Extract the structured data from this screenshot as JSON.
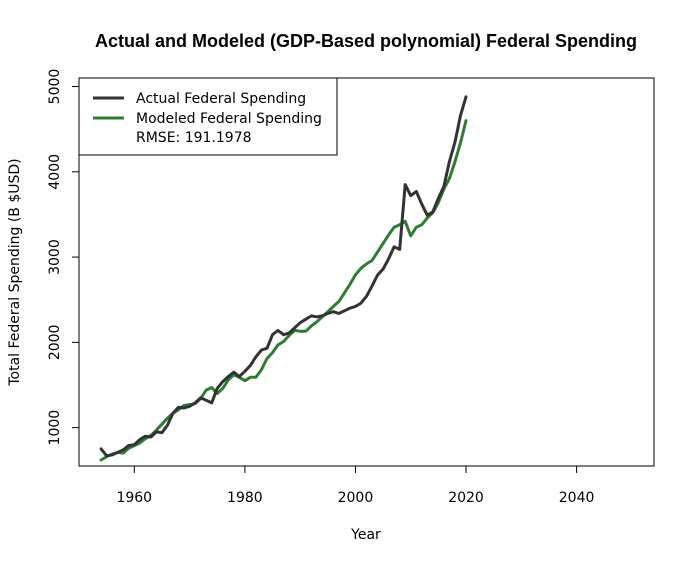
{
  "chart_data": {
    "type": "line",
    "title": "Actual and Modeled (GDP-Based polynomial) Federal Spending",
    "xlabel": "Year",
    "ylabel": "Total Federal Spending (B $USD)",
    "xlim": [
      1950,
      2054
    ],
    "ylim": [
      550,
      5100
    ],
    "x_ticks": [
      1960,
      1980,
      2000,
      2020,
      2040
    ],
    "y_ticks": [
      1000,
      2000,
      3000,
      4000,
      5000
    ],
    "grid": false,
    "legend_position": "top-left",
    "rmse_label": "RMSE: 191.1978",
    "series": [
      {
        "name": "Actual Federal Spending",
        "color": "#333333",
        "x": [
          1954,
          1955,
          1956,
          1957,
          1958,
          1959,
          1960,
          1961,
          1962,
          1963,
          1964,
          1965,
          1966,
          1967,
          1968,
          1969,
          1970,
          1971,
          1972,
          1973,
          1974,
          1975,
          1976,
          1977,
          1978,
          1979,
          1980,
          1981,
          1982,
          1983,
          1984,
          1985,
          1986,
          1987,
          1988,
          1989,
          1990,
          1991,
          1992,
          1993,
          1994,
          1995,
          1996,
          1997,
          1998,
          1999,
          2000,
          2001,
          2002,
          2003,
          2004,
          2005,
          2006,
          2007,
          2008,
          2009,
          2010,
          2011,
          2012,
          2013,
          2014,
          2015,
          2016,
          2017,
          2018,
          2019,
          2020
        ],
        "values": [
          750,
          670,
          680,
          710,
          740,
          790,
          800,
          860,
          900,
          890,
          950,
          940,
          1030,
          1170,
          1240,
          1230,
          1250,
          1290,
          1350,
          1320,
          1290,
          1460,
          1540,
          1600,
          1650,
          1600,
          1660,
          1730,
          1830,
          1910,
          1930,
          2090,
          2140,
          2090,
          2110,
          2170,
          2230,
          2270,
          2310,
          2300,
          2310,
          2340,
          2360,
          2340,
          2370,
          2400,
          2420,
          2460,
          2540,
          2660,
          2790,
          2860,
          2980,
          3120,
          3090,
          3850,
          3720,
          3770,
          3620,
          3490,
          3530,
          3690,
          3830,
          4120,
          4350,
          4660,
          4880
        ]
      },
      {
        "name": "Modeled Federal Spending",
        "color": "#2e7d32",
        "x": [
          1954,
          1955,
          1956,
          1957,
          1958,
          1959,
          1960,
          1961,
          1962,
          1963,
          1964,
          1965,
          1966,
          1967,
          1968,
          1969,
          1970,
          1971,
          1972,
          1973,
          1974,
          1975,
          1976,
          1977,
          1978,
          1979,
          1980,
          1981,
          1982,
          1983,
          1984,
          1985,
          1986,
          1987,
          1988,
          1989,
          1990,
          1991,
          1992,
          1993,
          1994,
          1995,
          1996,
          1997,
          1998,
          1999,
          2000,
          2001,
          2002,
          2003,
          2004,
          2005,
          2006,
          2007,
          2008,
          2009,
          2010,
          2011,
          2012,
          2013,
          2014,
          2015,
          2016,
          2017,
          2018,
          2019,
          2020
        ],
        "values": [
          620,
          660,
          690,
          710,
          700,
          760,
          790,
          820,
          870,
          910,
          970,
          1040,
          1110,
          1170,
          1210,
          1260,
          1270,
          1280,
          1340,
          1440,
          1470,
          1400,
          1460,
          1560,
          1620,
          1590,
          1550,
          1590,
          1590,
          1680,
          1810,
          1880,
          1970,
          2010,
          2080,
          2140,
          2130,
          2130,
          2190,
          2240,
          2300,
          2360,
          2420,
          2480,
          2580,
          2680,
          2790,
          2870,
          2920,
          2960,
          3060,
          3160,
          3260,
          3350,
          3380,
          3420,
          3250,
          3350,
          3380,
          3460,
          3520,
          3640,
          3800,
          3920,
          4120,
          4340,
          4600
        ]
      }
    ]
  }
}
